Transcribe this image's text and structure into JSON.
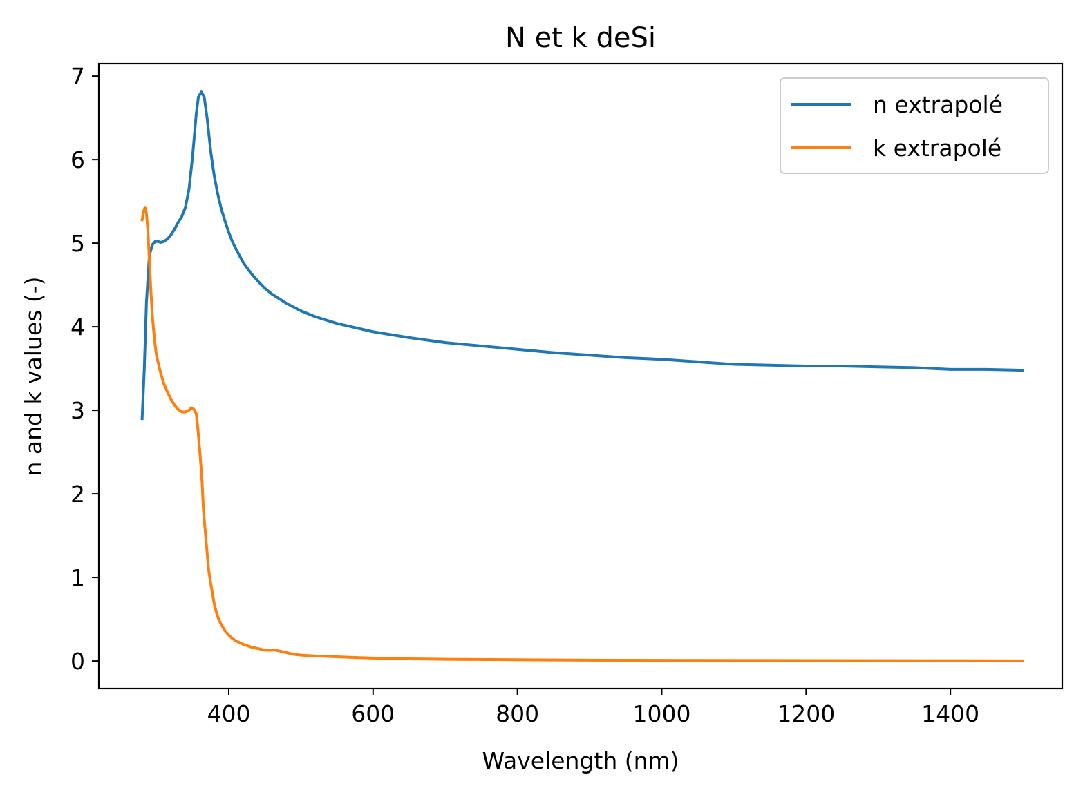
{
  "chart_data": {
    "type": "line",
    "title": "N et k deSi",
    "xlabel": "Wavelength (nm)",
    "ylabel": "n and k values (-)",
    "xlim": [
      220,
      1555
    ],
    "ylim": [
      -0.33,
      7.15
    ],
    "xticks": [
      400,
      600,
      800,
      1000,
      1200,
      1400
    ],
    "yticks": [
      0,
      1,
      2,
      3,
      4,
      5,
      6,
      7
    ],
    "grid": false,
    "legend_position": "top-right",
    "series": [
      {
        "name": "n extrapolé",
        "color": "#1f77b4",
        "x": [
          280,
          283,
          286,
          290,
          294,
          298,
          302,
          306,
          310,
          315,
          320,
          325,
          330,
          335,
          340,
          345,
          350,
          355,
          358,
          362,
          366,
          370,
          375,
          380,
          385,
          390,
          395,
          400,
          405,
          410,
          420,
          430,
          440,
          450,
          460,
          480,
          500,
          520,
          550,
          580,
          600,
          650,
          700,
          750,
          800,
          850,
          900,
          950,
          1000,
          1050,
          1100,
          1150,
          1200,
          1250,
          1300,
          1350,
          1375,
          1400,
          1450,
          1500
        ],
        "y": [
          2.9,
          3.5,
          4.3,
          4.85,
          4.98,
          5.02,
          5.02,
          5.01,
          5.02,
          5.05,
          5.1,
          5.17,
          5.25,
          5.32,
          5.43,
          5.65,
          6.05,
          6.55,
          6.75,
          6.81,
          6.75,
          6.5,
          6.1,
          5.8,
          5.58,
          5.4,
          5.26,
          5.13,
          5.02,
          4.93,
          4.77,
          4.65,
          4.55,
          4.46,
          4.39,
          4.28,
          4.19,
          4.12,
          4.04,
          3.98,
          3.94,
          3.87,
          3.81,
          3.77,
          3.73,
          3.69,
          3.66,
          3.63,
          3.61,
          3.58,
          3.55,
          3.54,
          3.53,
          3.53,
          3.52,
          3.51,
          3.5,
          3.49,
          3.49,
          3.48
        ]
      },
      {
        "name": "k extrapolé",
        "color": "#ff7f0e",
        "x": [
          280,
          282,
          284,
          286,
          288,
          290,
          292,
          294,
          296,
          298,
          300,
          305,
          310,
          315,
          320,
          325,
          330,
          335,
          340,
          345,
          348,
          352,
          355,
          357,
          360,
          363,
          365,
          368,
          370,
          372,
          375,
          378,
          380,
          383,
          386,
          390,
          395,
          400,
          405,
          410,
          420,
          430,
          440,
          450,
          460,
          465,
          470,
          480,
          490,
          500,
          520,
          550,
          580,
          600,
          650,
          700,
          800,
          900,
          1000,
          1200,
          1400,
          1500
        ],
        "y": [
          5.28,
          5.38,
          5.43,
          5.35,
          5.15,
          4.8,
          4.45,
          4.15,
          3.95,
          3.78,
          3.65,
          3.47,
          3.32,
          3.22,
          3.13,
          3.06,
          3.01,
          2.98,
          2.98,
          3.0,
          3.03,
          3.01,
          2.96,
          2.8,
          2.5,
          2.15,
          1.8,
          1.5,
          1.3,
          1.1,
          0.93,
          0.78,
          0.68,
          0.58,
          0.5,
          0.43,
          0.36,
          0.31,
          0.27,
          0.24,
          0.2,
          0.17,
          0.15,
          0.13,
          0.13,
          0.13,
          0.12,
          0.1,
          0.08,
          0.07,
          0.06,
          0.05,
          0.04,
          0.035,
          0.025,
          0.02,
          0.015,
          0.01,
          0.008,
          0.005,
          0.003,
          0.002
        ]
      }
    ]
  }
}
